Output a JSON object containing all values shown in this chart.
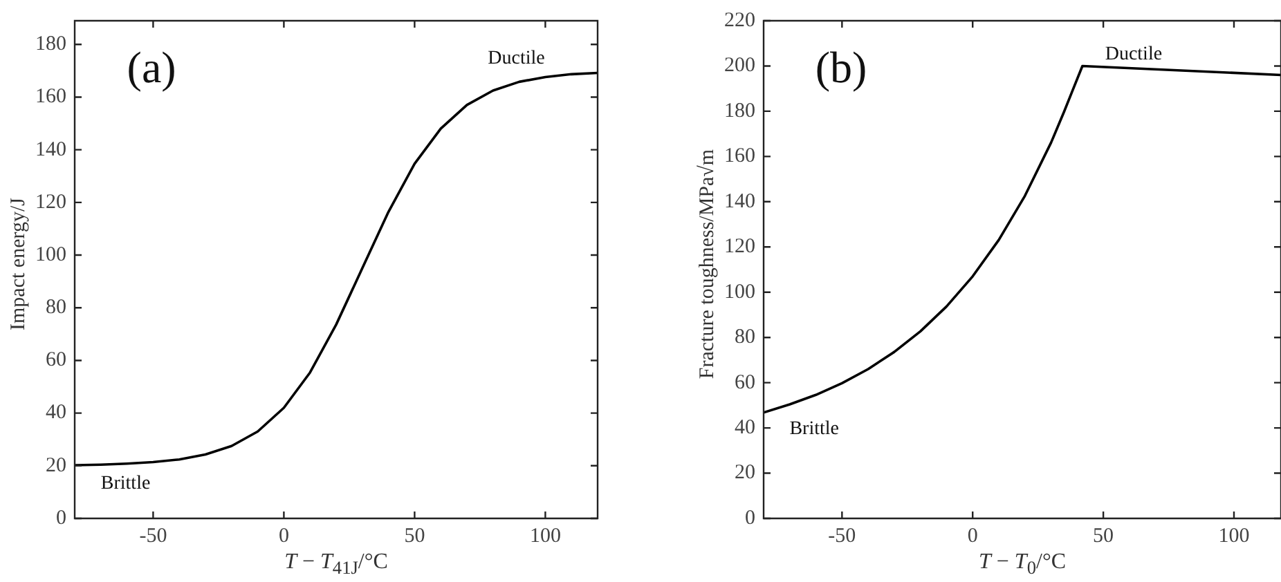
{
  "chart_data": [
    {
      "type": "line",
      "xlabel": "T − T$_{41J}$/°C",
      "ylabel": "Impact energy/J",
      "marker": "none",
      "xlim": [
        -80,
        120
      ],
      "ylim": [
        0,
        189
      ],
      "xticks": [
        -50,
        0,
        50,
        100
      ],
      "yticks": [
        0,
        20,
        40,
        60,
        80,
        100,
        120,
        140,
        160,
        180
      ],
      "annotations": [
        "(a)",
        "Ductile",
        "Brittle"
      ],
      "series": [
        {
          "color": "#000000",
          "x": [
            -80,
            -70,
            -60,
            -50,
            -40,
            -30,
            -20,
            -10,
            0,
            10,
            20,
            30,
            40,
            50,
            60,
            70,
            80,
            90,
            100,
            110,
            120
          ],
          "values": [
            20.2,
            20.4,
            20.8,
            21.4,
            22.4,
            24.3,
            27.5,
            33,
            42,
            55.4,
            73.6,
            95,
            116.4,
            134.7,
            148,
            157,
            162.5,
            165.8,
            167.6,
            168.7,
            169.2
          ]
        }
      ]
    },
    {
      "type": "line",
      "xlabel": "T − T$_{0}$/°C",
      "ylabel": "Fracture toughness/MPa√m",
      "marker": "none",
      "xlim": [
        -80,
        118
      ],
      "ylim": [
        0,
        220
      ],
      "xticks": [
        -50,
        0,
        50,
        100
      ],
      "yticks": [
        0,
        20,
        40,
        60,
        80,
        100,
        120,
        140,
        160,
        180,
        200,
        220
      ],
      "annotations": [
        "(b)",
        "Ductile",
        "Brittle"
      ],
      "series": [
        {
          "color": "#000000",
          "x": [
            -80,
            -70,
            -60,
            -50,
            -40,
            -30,
            -20,
            -10,
            0,
            10,
            20,
            30,
            35,
            38,
            42,
            118
          ],
          "values": [
            46.8,
            50.4,
            54.6,
            59.8,
            66,
            73.6,
            82.7,
            93.7,
            107,
            123.1,
            142.6,
            166.1,
            179.8,
            188.5,
            200,
            196
          ]
        }
      ]
    }
  ]
}
